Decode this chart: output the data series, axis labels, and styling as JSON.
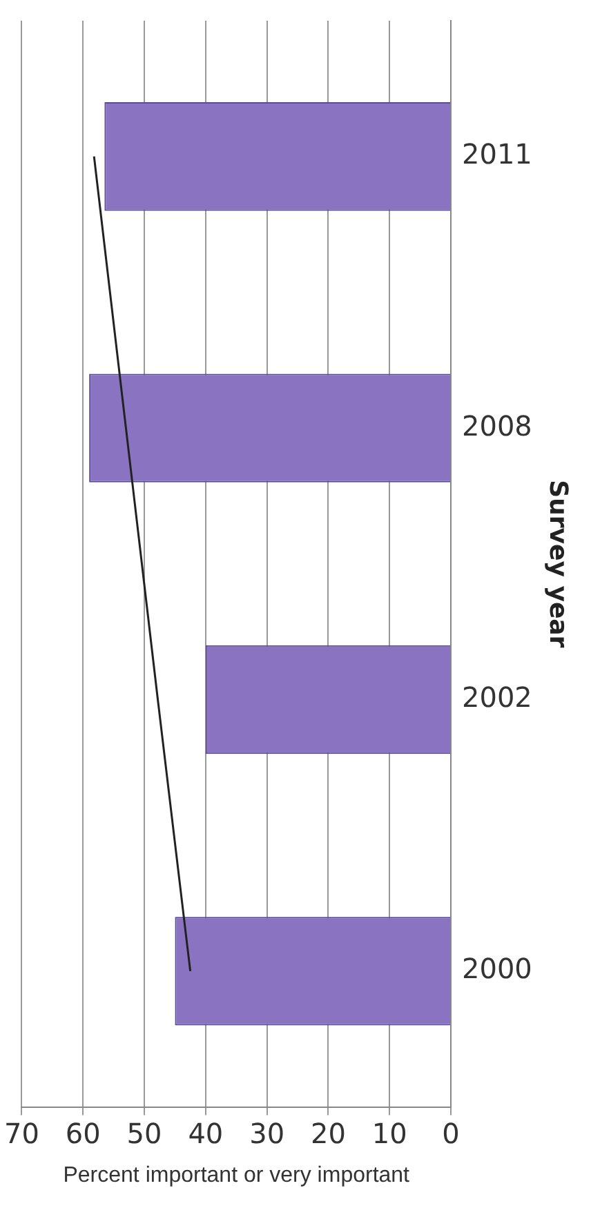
{
  "chart_data": {
    "type": "bar",
    "orientation": "horizontal",
    "xlabel": "Percent important or very important",
    "ylabel": "Survey year",
    "categories": [
      "2011",
      "2008",
      "2002",
      "2000"
    ],
    "series": [
      {
        "color": "#8a74c2",
        "values": [
          56.5,
          59,
          40,
          45
        ]
      },
      {
        "type": "line",
        "color": "#222222",
        "values": [
          58.2,
          53.0,
          47.8,
          42.5
        ]
      }
    ],
    "xlim": [
      70,
      0
    ],
    "xticks": [
      70,
      60,
      50,
      40,
      30,
      20,
      10,
      0
    ],
    "grid": "x",
    "legend": false,
    "marker": "none",
    "line_style": "solid"
  }
}
